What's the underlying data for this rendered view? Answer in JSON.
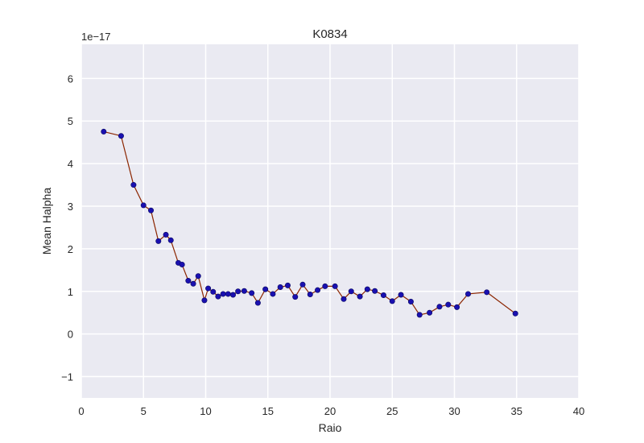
{
  "chart_data": {
    "type": "line",
    "title": "K0834",
    "xlabel": "Raio",
    "ylabel": "Mean Halpha",
    "y_offset_label": "1e−17",
    "xlim": [
      0,
      40
    ],
    "ylim": [
      -1.5,
      6.8
    ],
    "x_ticks": [
      0,
      5,
      10,
      15,
      20,
      25,
      30,
      35,
      40
    ],
    "y_ticks": [
      -1,
      0,
      1,
      2,
      3,
      4,
      5,
      6
    ],
    "x_tick_labels": [
      "0",
      "5",
      "10",
      "15",
      "20",
      "25",
      "30",
      "35",
      "40"
    ],
    "y_tick_labels": [
      "−1",
      "0",
      "1",
      "2",
      "3",
      "4",
      "5",
      "6"
    ],
    "grid": true,
    "background_color": "#EAEAF2",
    "line_color": "#8B2500",
    "marker_color": "#1A10B0",
    "series": [
      {
        "x": [
          1.8,
          3.2,
          4.2,
          5.0,
          5.6,
          6.2,
          6.8,
          7.2,
          7.8,
          8.1,
          8.6,
          9.0,
          9.4,
          9.9,
          10.2,
          10.6,
          11.0,
          11.4,
          11.8,
          12.2,
          12.6,
          13.1,
          13.7,
          14.2,
          14.8,
          15.4,
          16.0,
          16.6,
          17.2,
          17.8,
          18.4,
          19.0,
          19.6,
          20.4,
          21.1,
          21.7,
          22.4,
          23.0,
          23.6,
          24.3,
          25.0,
          25.7,
          26.5,
          27.2,
          28.0,
          28.8,
          29.5,
          30.2,
          31.1,
          32.6,
          34.9
        ],
        "y": [
          4.75,
          4.65,
          3.5,
          3.02,
          2.9,
          2.18,
          2.33,
          2.2,
          1.67,
          1.63,
          1.25,
          1.18,
          1.36,
          0.79,
          1.07,
          0.99,
          0.88,
          0.94,
          0.94,
          0.92,
          1.0,
          1.01,
          0.96,
          0.73,
          1.05,
          0.94,
          1.1,
          1.14,
          0.87,
          1.16,
          0.93,
          1.03,
          1.12,
          1.12,
          0.82,
          1.0,
          0.88,
          1.05,
          1.01,
          0.91,
          0.77,
          0.92,
          0.76,
          0.45,
          0.5,
          0.64,
          0.69,
          0.63,
          0.94,
          0.98,
          0.48
        ]
      }
    ]
  }
}
